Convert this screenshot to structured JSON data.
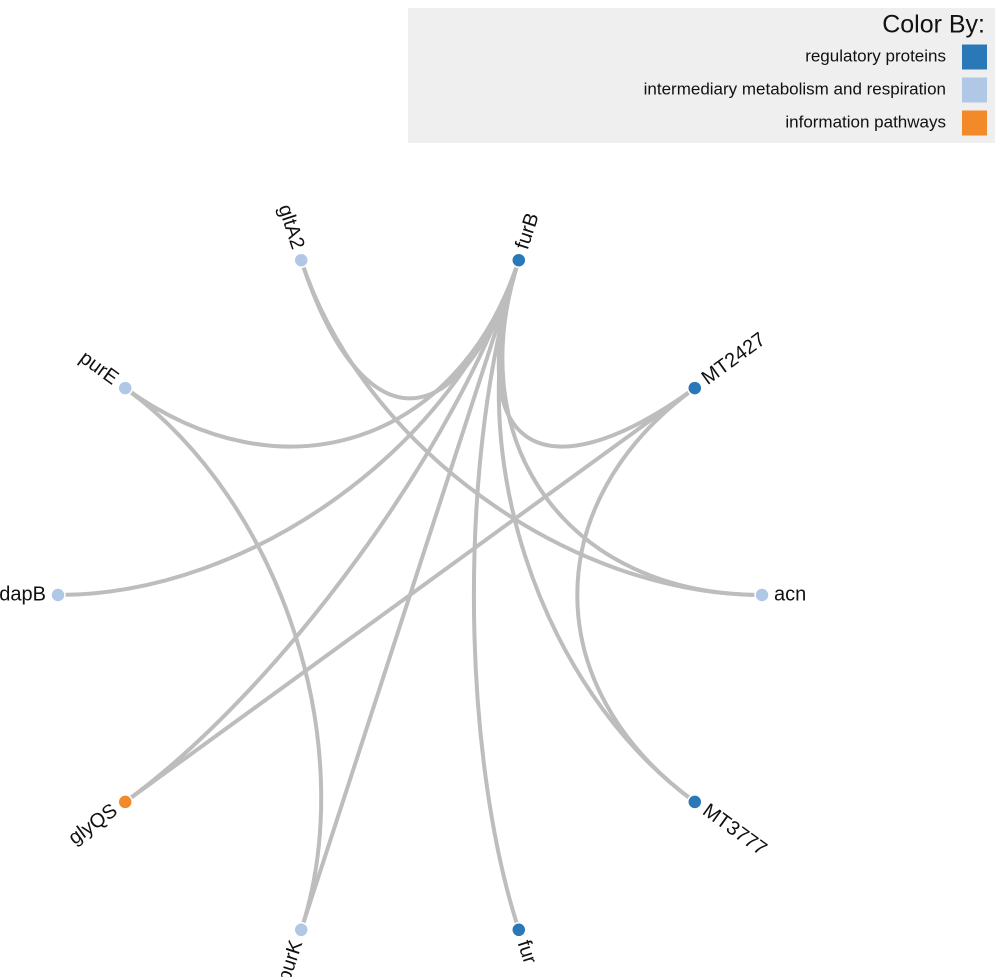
{
  "legend": {
    "title": "Color By:",
    "items": [
      {
        "label": "regulatory proteins",
        "color": "#2a78b8"
      },
      {
        "label": "intermediary metabolism and respiration",
        "color": "#b0c7e6"
      },
      {
        "label": "information pathways",
        "color": "#f28a2a"
      }
    ]
  },
  "nodes": [
    {
      "label": "furB",
      "group": 0
    },
    {
      "label": "MT2427",
      "group": 0
    },
    {
      "label": "acn",
      "group": 1
    },
    {
      "label": "MT3777",
      "group": 0
    },
    {
      "label": "fur",
      "group": 0
    },
    {
      "label": "purK",
      "group": 1
    },
    {
      "label": "glyQS",
      "group": 2
    },
    {
      "label": "dapB",
      "group": 1
    },
    {
      "label": "purE",
      "group": 1
    },
    {
      "label": "gltA2",
      "group": 1
    }
  ],
  "edges": [
    [
      0,
      9
    ],
    [
      0,
      8
    ],
    [
      0,
      7
    ],
    [
      0,
      6
    ],
    [
      0,
      5
    ],
    [
      0,
      4
    ],
    [
      0,
      3
    ],
    [
      0,
      2
    ],
    [
      0,
      1
    ],
    [
      9,
      2
    ],
    [
      8,
      5
    ],
    [
      1,
      6
    ],
    [
      1,
      3
    ]
  ]
}
